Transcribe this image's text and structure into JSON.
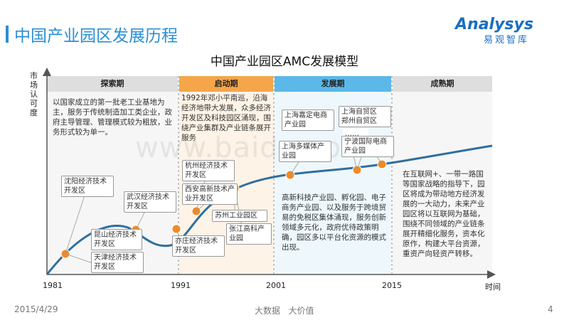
{
  "header": {
    "title": "中国产业园区发展历程",
    "logo_main": "Analysys",
    "logo_sub": "易观智库"
  },
  "diagram": {
    "subtitle": "中国产业园区AMC发展模型",
    "y_axis_label": "市场认可度",
    "x_axis_label": "时间",
    "ticks": [
      "1981",
      "1991",
      "2001",
      "2015"
    ],
    "phases": [
      {
        "name": "探索期",
        "description": "以国家成立的第一批老工业基地为主，服务于传统制造加工类企业，政府主导管理、管理模式较为粗放，业务形式较为单一。"
      },
      {
        "name": "启动期",
        "description": "1992年邓小平南巡，沿海经济地带大发展，众多经济开发区及科技园区涌现，围绕产业集群及产业链条展开服务"
      },
      {
        "name": "发展期",
        "description": "高新科技产业园、孵化园、电子商务产业园、以及服务于跨境贸易的免税区集体涌现，服务创新领域多元化，政府优待政策明确，园区多以平台化资源的模式出现。"
      },
      {
        "name": "成熟期",
        "description": "在互联网+、一带一路国等国家战略的指导下，园区将成为带动地方经济发展的一大动力，未来产业园区将以互联网为基础，围绕不同领域的产业链条展开精细化服务，资本化原作，构建大平台资源，重资产向轻资产转移。"
      }
    ],
    "milestones": [
      "沈阳经济技术开发区",
      "天津经济技术开发区",
      "昆山经济技术开发区",
      "武汉经济技术开发区",
      "杭州经济技术开发区",
      "西安高新技术产业开发区",
      "苏州工业园区",
      "亦庄经济技术开发区",
      "张江高科产业园",
      "上海嘉定电商产业园",
      "上海多媒体产业园",
      "上海自贸区\n郑州自贸区",
      "……",
      "宁波国际电商产业园"
    ],
    "colors": {
      "phase1": "#e5e5e5",
      "phase2": "#f5a64a",
      "phase3": "#5cb8e8",
      "phase4": "#e5e5e5",
      "curve": "#2f6f9f",
      "point": "#f28a25",
      "accent": "#2a8fd4"
    }
  },
  "watermark": "www.baidu.com",
  "footer": {
    "date": "2015/4/29",
    "slogan": "大数据   大价值",
    "page": "4"
  }
}
